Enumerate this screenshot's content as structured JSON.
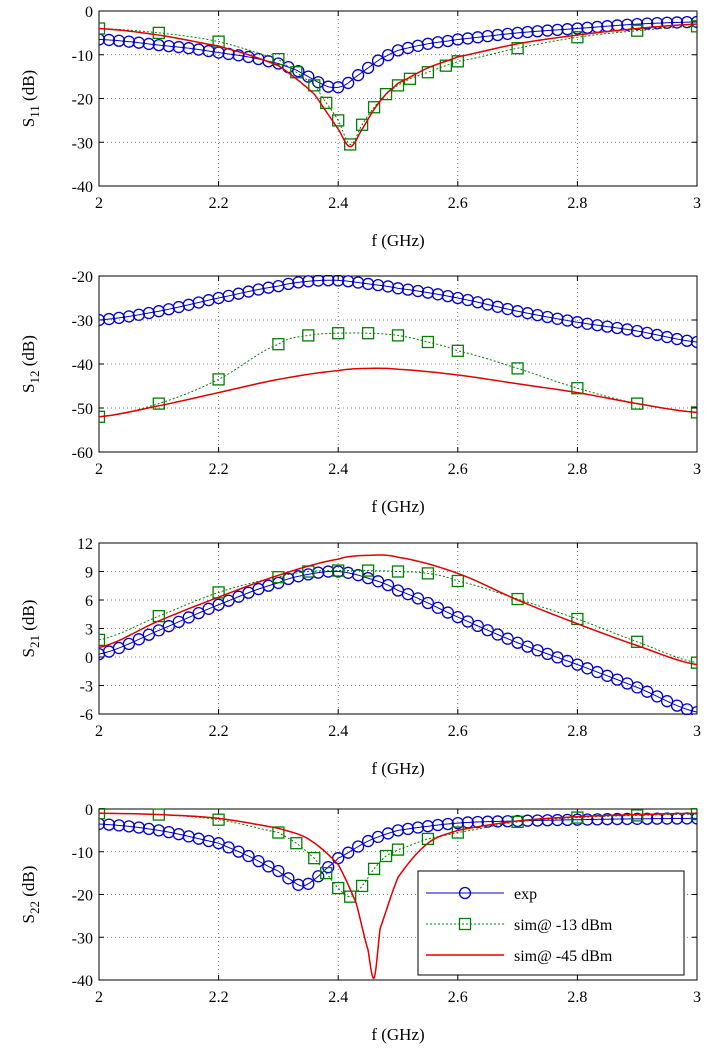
{
  "chart_data": [
    {
      "type": "line",
      "id": "s11",
      "ylabel": {
        "base": "S",
        "sub": "11",
        "unit": " (dB)"
      },
      "xlabel": "f (GHz)",
      "xlim": [
        2,
        3
      ],
      "ylim": [
        -40,
        0
      ],
      "xticks": [
        2,
        2.2,
        2.4,
        2.6,
        2.8,
        3
      ],
      "xtick_labels": [
        "2",
        "2.2",
        "2.4",
        "2.6",
        "2.8",
        "3"
      ],
      "yticks": [
        0,
        -10,
        -20,
        -30,
        -40
      ],
      "ytick_labels": [
        "0",
        "-10",
        "-20",
        "-30",
        "-40"
      ],
      "grid": true,
      "series": [
        {
          "name": "exp",
          "x": [
            2.0,
            2.05,
            2.1,
            2.15,
            2.2,
            2.25,
            2.3,
            2.33,
            2.35,
            2.37,
            2.39,
            2.41,
            2.43,
            2.45,
            2.47,
            2.5,
            2.55,
            2.6,
            2.7,
            2.8,
            2.9,
            3.0
          ],
          "y": [
            -6.5,
            -7,
            -7.8,
            -8.5,
            -9.5,
            -10.5,
            -12,
            -13.5,
            -15,
            -16.5,
            -17.5,
            -17,
            -15,
            -13,
            -11,
            -9,
            -7.5,
            -6.5,
            -5,
            -4,
            -3,
            -2.5
          ]
        },
        {
          "name": "sim@ -13 dBm",
          "x": [
            2.0,
            2.1,
            2.2,
            2.3,
            2.33,
            2.36,
            2.38,
            2.4,
            2.42,
            2.44,
            2.46,
            2.48,
            2.5,
            2.52,
            2.55,
            2.58,
            2.6,
            2.7,
            2.8,
            2.9,
            3.0
          ],
          "y": [
            -4,
            -5,
            -7,
            -11,
            -14,
            -17,
            -21,
            -25,
            -30.5,
            -26,
            -22,
            -19,
            -17,
            -15.5,
            -14,
            -12.5,
            -11.5,
            -8.5,
            -6,
            -4.5,
            -3.5
          ]
        },
        {
          "name": "sim@ -45 dBm",
          "x": [
            2.0,
            2.1,
            2.2,
            2.25,
            2.3,
            2.33,
            2.36,
            2.38,
            2.4,
            2.42,
            2.44,
            2.46,
            2.48,
            2.5,
            2.55,
            2.6,
            2.7,
            2.8,
            2.9,
            3.0
          ],
          "y": [
            -4,
            -5.5,
            -8,
            -10,
            -12.5,
            -15.5,
            -19,
            -23,
            -27,
            -31,
            -27,
            -22.5,
            -19,
            -16.5,
            -13,
            -10.5,
            -7.5,
            -5.5,
            -4,
            -3
          ]
        }
      ]
    },
    {
      "type": "line",
      "id": "s12",
      "ylabel": {
        "base": "S",
        "sub": "12",
        "unit": " (dB)"
      },
      "xlabel": "f (GHz)",
      "xlim": [
        2,
        3
      ],
      "ylim": [
        -60,
        -20
      ],
      "xticks": [
        2,
        2.2,
        2.4,
        2.6,
        2.8,
        3
      ],
      "xtick_labels": [
        "2",
        "2.2",
        "2.4",
        "2.6",
        "2.8",
        "3"
      ],
      "yticks": [
        -20,
        -30,
        -40,
        -50,
        -60
      ],
      "ytick_labels": [
        "-20",
        "-30",
        "-40",
        "-50",
        "-60"
      ],
      "grid": true,
      "series": [
        {
          "name": "exp",
          "x": [
            2.0,
            2.1,
            2.2,
            2.3,
            2.35,
            2.4,
            2.45,
            2.5,
            2.6,
            2.7,
            2.8,
            2.9,
            3.0
          ],
          "y": [
            -30,
            -28,
            -25,
            -22.3,
            -21.2,
            -21,
            -21.8,
            -22.8,
            -25,
            -28,
            -30.5,
            -32.5,
            -35
          ]
        },
        {
          "name": "sim@ -13 dBm",
          "x": [
            2.0,
            2.1,
            2.2,
            2.3,
            2.35,
            2.4,
            2.45,
            2.5,
            2.55,
            2.6,
            2.7,
            2.8,
            2.9,
            3.0
          ],
          "y": [
            -52,
            -49,
            -43.5,
            -35.5,
            -33.5,
            -33,
            -33,
            -33.5,
            -35,
            -37,
            -41,
            -45.5,
            -49,
            -51
          ]
        },
        {
          "name": "sim@ -45 dBm",
          "x": [
            2.0,
            2.1,
            2.2,
            2.3,
            2.4,
            2.45,
            2.5,
            2.6,
            2.7,
            2.8,
            2.9,
            3.0
          ],
          "y": [
            -52,
            -49.5,
            -46.5,
            -43.5,
            -41.5,
            -41,
            -41.2,
            -42.5,
            -44.5,
            -46.5,
            -49,
            -51
          ]
        }
      ]
    },
    {
      "type": "line",
      "id": "s21",
      "ylabel": {
        "base": "S",
        "sub": "21",
        "unit": " (dB)"
      },
      "xlabel": "f (GHz)",
      "xlim": [
        2,
        3
      ],
      "ylim": [
        -6,
        12
      ],
      "xticks": [
        2,
        2.2,
        2.4,
        2.6,
        2.8,
        3
      ],
      "xtick_labels": [
        "2",
        "2.2",
        "2.4",
        "2.6",
        "2.8",
        "3"
      ],
      "yticks": [
        12,
        9,
        6,
        3,
        0,
        -3,
        -6
      ],
      "ytick_labels": [
        "12",
        "9",
        "6",
        "3",
        "0",
        "-3",
        "-6"
      ],
      "grid": true,
      "series": [
        {
          "name": "exp",
          "x": [
            2.0,
            2.1,
            2.2,
            2.3,
            2.35,
            2.4,
            2.45,
            2.5,
            2.6,
            2.7,
            2.8,
            2.9,
            3.0
          ],
          "y": [
            0.3,
            2.8,
            5.5,
            7.8,
            8.7,
            9,
            8.3,
            7,
            4.2,
            1.5,
            -0.8,
            -3.2,
            -5.8
          ]
        },
        {
          "name": "sim@ -13 dBm",
          "x": [
            2.0,
            2.1,
            2.2,
            2.3,
            2.35,
            2.4,
            2.45,
            2.5,
            2.55,
            2.6,
            2.7,
            2.8,
            2.9,
            3.0
          ],
          "y": [
            1.8,
            4.3,
            6.8,
            8.4,
            9,
            9.1,
            9.1,
            9,
            8.8,
            8,
            6.1,
            4,
            1.6,
            -0.6
          ]
        },
        {
          "name": "sim@ -45 dBm",
          "x": [
            2.0,
            2.1,
            2.2,
            2.3,
            2.4,
            2.45,
            2.5,
            2.6,
            2.7,
            2.8,
            2.9,
            3.0
          ],
          "y": [
            1,
            3.8,
            6.3,
            8.6,
            10.3,
            10.7,
            10.5,
            8.8,
            6,
            3.5,
            1.2,
            -0.8
          ]
        }
      ]
    },
    {
      "type": "line",
      "id": "s22",
      "ylabel": {
        "base": "S",
        "sub": "22",
        "unit": " (dB)"
      },
      "xlabel": "f (GHz)",
      "xlim": [
        2,
        3
      ],
      "ylim": [
        -40,
        0
      ],
      "xticks": [
        2,
        2.2,
        2.4,
        2.6,
        2.8,
        3
      ],
      "xtick_labels": [
        "2",
        "2.2",
        "2.4",
        "2.6",
        "2.8",
        "3"
      ],
      "yticks": [
        0,
        -10,
        -20,
        -30,
        -40
      ],
      "ytick_labels": [
        "0",
        "-10",
        "-20",
        "-30",
        "-40"
      ],
      "grid": true,
      "legend": {
        "position": "lower-right",
        "entries": [
          {
            "label": "exp",
            "series": 0
          },
          {
            "label": "sim@ -13 dBm",
            "series": 1
          },
          {
            "label": "sim@ -45 dBm",
            "series": 2
          }
        ]
      },
      "series": [
        {
          "name": "exp",
          "x": [
            2.0,
            2.1,
            2.2,
            2.25,
            2.3,
            2.32,
            2.34,
            2.36,
            2.38,
            2.4,
            2.45,
            2.5,
            2.6,
            2.7,
            2.8,
            2.9,
            3.0
          ],
          "y": [
            -3.5,
            -5,
            -8,
            -11,
            -14.5,
            -16.5,
            -18,
            -16.5,
            -14,
            -11.5,
            -7.5,
            -5,
            -3.3,
            -2.8,
            -2.5,
            -2.3,
            -2.2
          ]
        },
        {
          "name": "sim@ -13 dBm",
          "x": [
            2.0,
            2.1,
            2.2,
            2.3,
            2.33,
            2.36,
            2.38,
            2.4,
            2.42,
            2.44,
            2.46,
            2.48,
            2.5,
            2.55,
            2.6,
            2.7,
            2.8,
            2.9,
            3.0
          ],
          "y": [
            -1,
            -1.3,
            -2.5,
            -5.5,
            -8,
            -11.5,
            -15,
            -18.5,
            -20.5,
            -18,
            -14,
            -11,
            -9.5,
            -7,
            -5.5,
            -3,
            -2,
            -1.5,
            -1.2
          ]
        },
        {
          "name": "sim@ -45 dBm",
          "x": [
            2.0,
            2.1,
            2.2,
            2.3,
            2.35,
            2.4,
            2.43,
            2.45,
            2.46,
            2.47,
            2.5,
            2.55,
            2.6,
            2.7,
            2.8,
            2.9,
            3.0
          ],
          "y": [
            -1,
            -1.3,
            -2.2,
            -4.5,
            -7,
            -13,
            -22,
            -33,
            -39.5,
            -28,
            -16,
            -8,
            -5,
            -2.8,
            -1.8,
            -1.3,
            -1
          ]
        }
      ]
    }
  ],
  "series_styles": [
    {
      "color": "#0000cc",
      "marker": "circle",
      "dash": ""
    },
    {
      "color": "#008000",
      "marker": "square",
      "dash": "2,2"
    },
    {
      "color": "#e00000",
      "marker": "none",
      "dash": ""
    }
  ]
}
